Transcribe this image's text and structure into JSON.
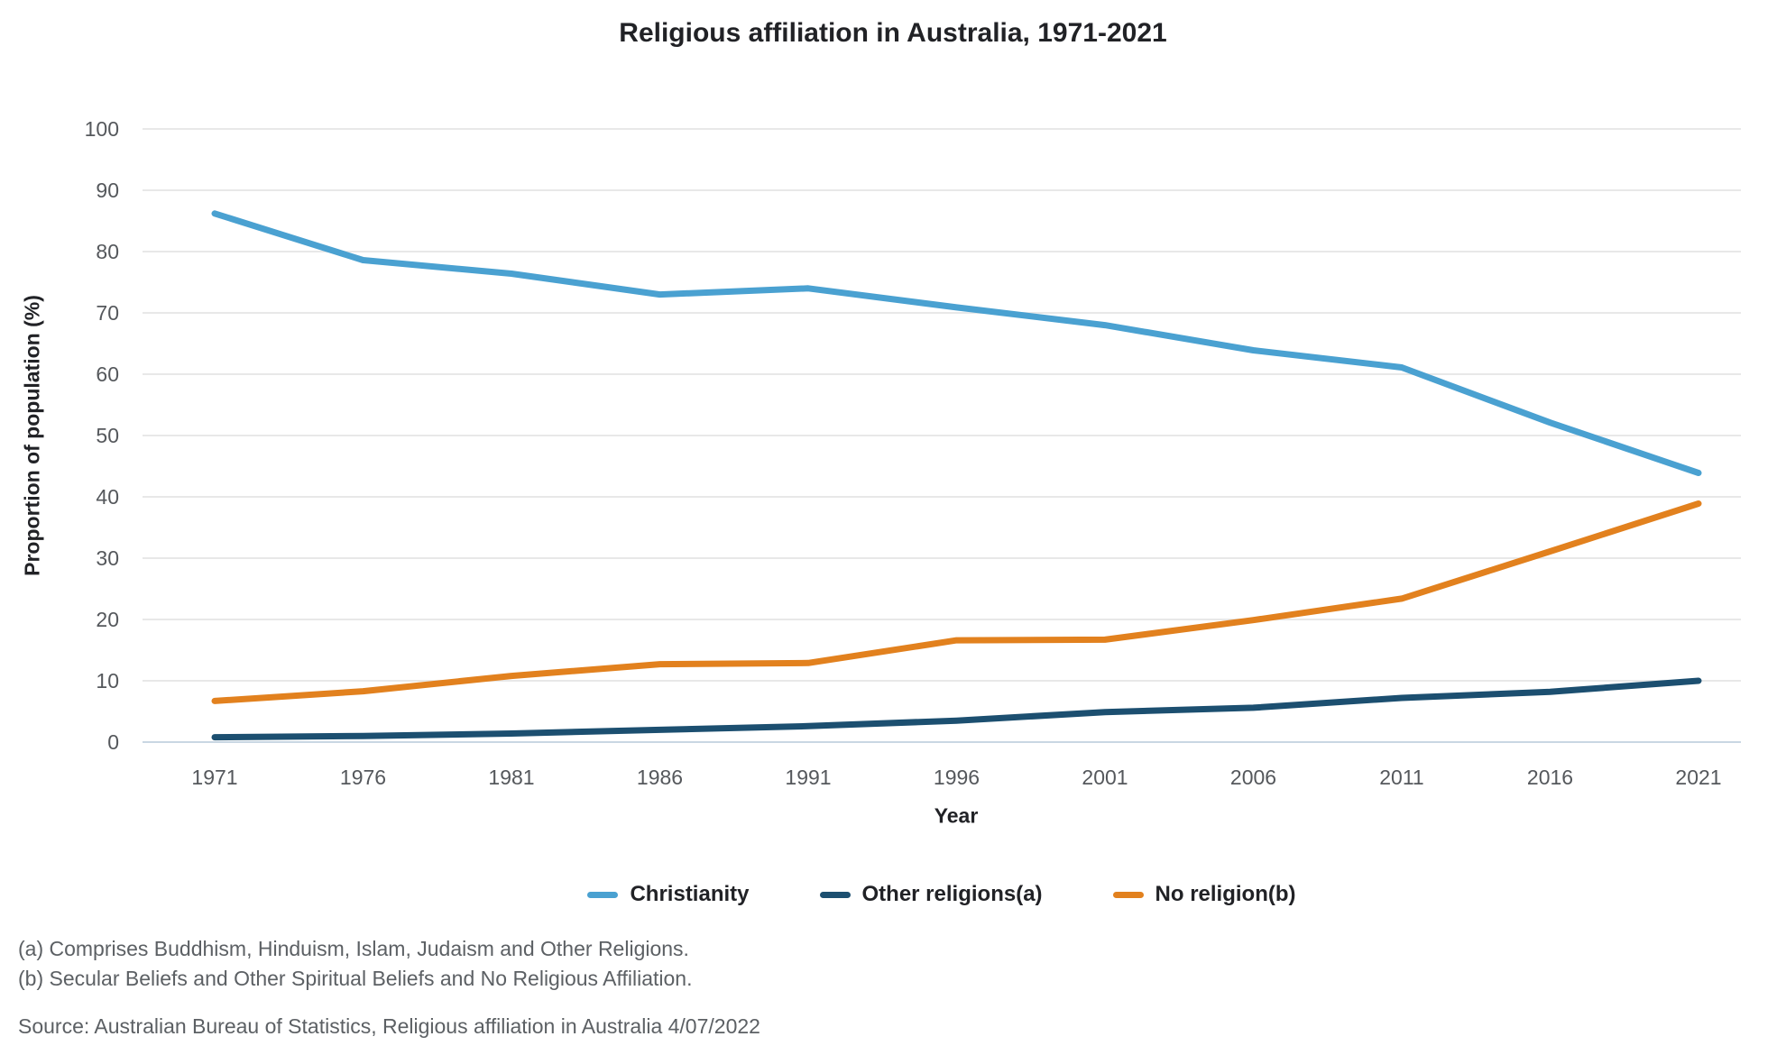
{
  "title": "Religious affiliation in Australia, 1971-2021",
  "axes": {
    "x_label": "Year",
    "y_label": "Proportion of population (%)"
  },
  "legend": [
    {
      "label": "Christianity",
      "color": "#4aa1d1"
    },
    {
      "label": "Other religions(a)",
      "color": "#1c4f70"
    },
    {
      "label": "No religion(b)",
      "color": "#e2811e"
    }
  ],
  "footnotes": [
    "(a) Comprises Buddhism, Hinduism, Islam, Judaism and Other Religions.",
    "(b) Secular Beliefs and Other Spiritual Beliefs and No Religious Affiliation."
  ],
  "source": "Source: Australian Bureau of Statistics, Religious affiliation in Australia 4/07/2022",
  "colors": {
    "gridline": "#e8e8e8",
    "zero_line": "#c9d7e3",
    "tick_text": "#55585c",
    "background": "#ffffff"
  },
  "chart_data": {
    "type": "line",
    "title": "Religious affiliation in Australia, 1971-2021",
    "xlabel": "Year",
    "ylabel": "Proportion of population (%)",
    "x": [
      1971,
      1976,
      1981,
      1986,
      1991,
      1996,
      2001,
      2006,
      2011,
      2016,
      2021
    ],
    "series": [
      {
        "name": "Christianity",
        "color": "#4aa1d1",
        "values": [
          86.2,
          78.6,
          76.4,
          73.0,
          74.0,
          70.9,
          68.0,
          63.9,
          61.1,
          52.1,
          43.9
        ]
      },
      {
        "name": "Other religions(a)",
        "color": "#1c4f70",
        "values": [
          0.8,
          1.0,
          1.4,
          2.0,
          2.6,
          3.5,
          4.9,
          5.6,
          7.2,
          8.2,
          10.0
        ]
      },
      {
        "name": "No religion(b)",
        "color": "#e2811e",
        "values": [
          6.7,
          8.3,
          10.8,
          12.7,
          12.9,
          16.6,
          16.7,
          19.9,
          23.4,
          31.1,
          38.9
        ]
      }
    ],
    "ylim": [
      0,
      100
    ],
    "y_ticks": [
      0,
      10,
      20,
      30,
      40,
      50,
      60,
      70,
      80,
      90,
      100
    ],
    "grid": "horizontal",
    "legend_position": "bottom"
  }
}
